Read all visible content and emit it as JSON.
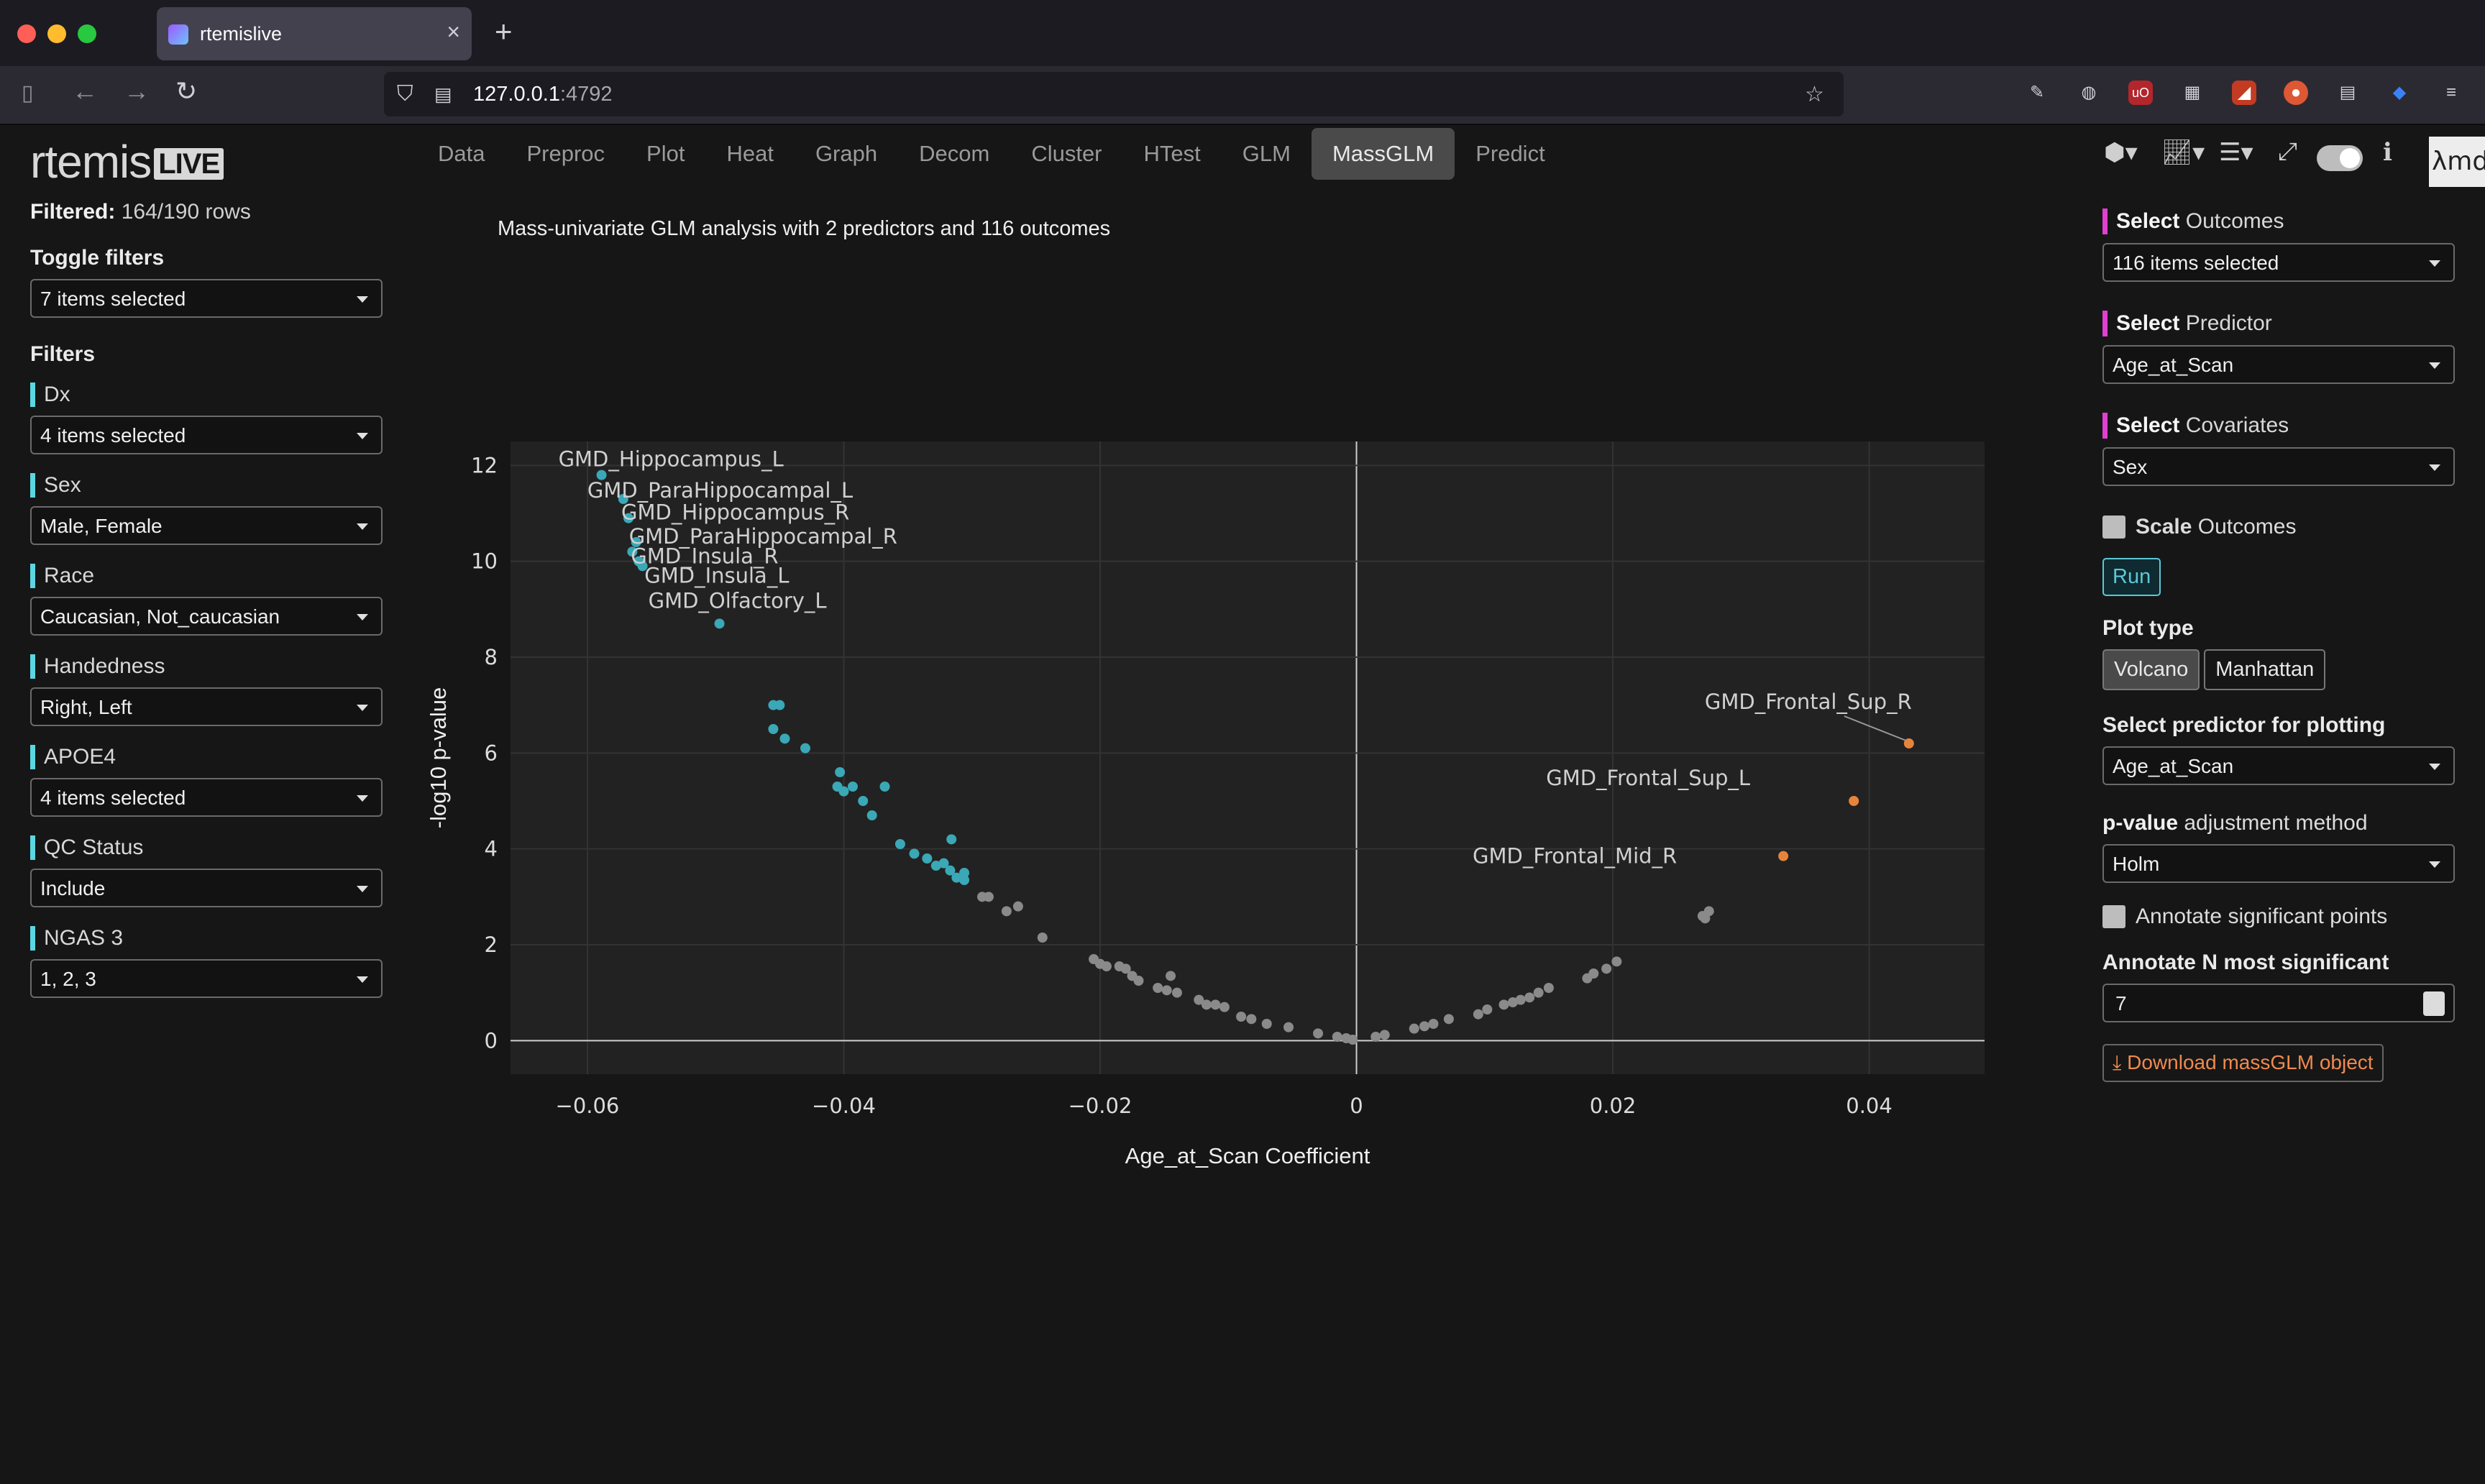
{
  "browser": {
    "tab_title": "rtemislive",
    "url_host": "127.0.0.1",
    "url_port": ":4792"
  },
  "app": {
    "logo": "rtemis",
    "logo_badge": "LIVE",
    "nav_tabs": [
      "Data",
      "Preproc",
      "Plot",
      "Heat",
      "Graph",
      "Decom",
      "Cluster",
      "HTest",
      "GLM",
      "MassGLM",
      "Predict"
    ],
    "active_tab": "MassGLM",
    "corner_label": "λmd"
  },
  "sidebar": {
    "filtered_label": "Filtered:",
    "filtered_value": "164/190 rows",
    "toggle_filters_label": "Toggle filters",
    "toggle_filters_value": "7 items selected",
    "filters_heading": "Filters",
    "filters": [
      {
        "label": "Dx",
        "value": "4 items selected"
      },
      {
        "label": "Sex",
        "value": "Male, Female"
      },
      {
        "label": "Race",
        "value": "Caucasian, Not_caucasian"
      },
      {
        "label": "Handedness",
        "value": "Right, Left"
      },
      {
        "label": "APOE4",
        "value": "4 items selected"
      },
      {
        "label": "QC Status",
        "value": "Include"
      },
      {
        "label": "NGAS 3",
        "value": "1, 2, 3"
      }
    ]
  },
  "main": {
    "description": "Mass-univariate GLM analysis with 2 predictors and 116 outcomes"
  },
  "right_panel": {
    "select_word": "Select",
    "outcomes_label": "Outcomes",
    "outcomes_value": "116 items selected",
    "predictor_label": "Predictor",
    "predictor_value": "Age_at_Scan",
    "covariates_label": "Covariates",
    "covariates_value": "Sex",
    "scale_bold": "Scale",
    "scale_rest": "Outcomes",
    "run_label": "Run",
    "plot_type_label": "Plot type",
    "plot_types": [
      "Volcano",
      "Manhattan"
    ],
    "plot_type_selected": "Volcano",
    "plot_predictor_label": "Select predictor for plotting",
    "plot_predictor_value": "Age_at_Scan",
    "pvalue_bold": "p-value",
    "pvalue_rest": "adjustment method",
    "pvalue_method": "Holm",
    "annotate_sig_label": "Annotate significant points",
    "annotate_n_label": "Annotate N most significant",
    "annotate_n_value": "7",
    "download_label": "Download massGLM object"
  },
  "colors": {
    "negative_significant": "#3aa8b6",
    "positive_significant": "#e8843a",
    "not_significant": "#8a8a8a",
    "plot_bg": "#222222",
    "accent_filters": "#5cd6e0",
    "accent_select": "#e040d0"
  },
  "chart_data": {
    "type": "scatter",
    "xlabel": "Age_at_Scan Coefficient",
    "ylabel": "-log10 p-value",
    "xlim": [
      -0.066,
      0.049
    ],
    "ylim": [
      -0.7,
      12.5
    ],
    "x_ticks": [
      -0.06,
      -0.04,
      -0.02,
      0,
      0.02,
      0.04
    ],
    "x_tick_labels": [
      "−0.06",
      "−0.04",
      "−0.02",
      "0",
      "0.02",
      "0.04"
    ],
    "y_ticks": [
      0,
      2,
      4,
      6,
      8,
      10,
      12
    ],
    "y_tick_labels": [
      "0",
      "2",
      "4",
      "6",
      "8",
      "10",
      "12"
    ],
    "grid": true,
    "series": [
      {
        "group": "negative",
        "points": [
          [
            -0.0589,
            11.8
          ],
          [
            -0.0572,
            11.3
          ],
          [
            -0.0568,
            10.9
          ],
          [
            -0.0562,
            10.4
          ],
          [
            -0.0565,
            10.2
          ],
          [
            -0.056,
            10.0
          ],
          [
            -0.0557,
            9.9
          ],
          [
            -0.0497,
            8.7
          ],
          [
            -0.0455,
            7.0
          ],
          [
            -0.045,
            7.0
          ],
          [
            -0.0455,
            6.5
          ],
          [
            -0.0446,
            6.3
          ],
          [
            -0.043,
            6.1
          ],
          [
            -0.0403,
            5.6
          ],
          [
            -0.0405,
            5.3
          ],
          [
            -0.04,
            5.2
          ],
          [
            -0.0393,
            5.3
          ],
          [
            -0.0368,
            5.3
          ],
          [
            -0.0385,
            5.0
          ],
          [
            -0.0378,
            4.7
          ],
          [
            -0.0356,
            4.1
          ],
          [
            -0.0345,
            3.9
          ],
          [
            -0.0335,
            3.8
          ],
          [
            -0.0328,
            3.65
          ],
          [
            -0.0322,
            3.7
          ],
          [
            -0.0317,
            3.55
          ],
          [
            -0.0312,
            3.4
          ],
          [
            -0.0306,
            3.35
          ],
          [
            -0.0316,
            4.2
          ],
          [
            -0.0306,
            3.5
          ]
        ]
      },
      {
        "group": "nonsignificant",
        "points": [
          [
            -0.0292,
            3.0
          ],
          [
            -0.0287,
            3.0
          ],
          [
            -0.0273,
            2.7
          ],
          [
            -0.0264,
            2.8
          ],
          [
            -0.0245,
            2.15
          ],
          [
            -0.0205,
            1.7
          ],
          [
            -0.02,
            1.6
          ],
          [
            -0.0195,
            1.55
          ],
          [
            -0.0185,
            1.55
          ],
          [
            -0.018,
            1.5
          ],
          [
            -0.0175,
            1.35
          ],
          [
            -0.017,
            1.25
          ],
          [
            -0.0155,
            1.1
          ],
          [
            -0.0148,
            1.05
          ],
          [
            -0.0145,
            1.35
          ],
          [
            -0.014,
            1.0
          ],
          [
            -0.0123,
            0.85
          ],
          [
            -0.0117,
            0.75
          ],
          [
            -0.011,
            0.75
          ],
          [
            -0.0103,
            0.7
          ],
          [
            -0.009,
            0.5
          ],
          [
            -0.0082,
            0.45
          ],
          [
            -0.007,
            0.35
          ],
          [
            -0.0053,
            0.28
          ],
          [
            -0.003,
            0.15
          ],
          [
            -0.0015,
            0.08
          ],
          [
            -0.0008,
            0.05
          ],
          [
            -0.0003,
            0.02
          ],
          [
            0.0015,
            0.08
          ],
          [
            0.0022,
            0.12
          ],
          [
            0.0045,
            0.25
          ],
          [
            0.0053,
            0.3
          ],
          [
            0.006,
            0.35
          ],
          [
            0.0072,
            0.45
          ],
          [
            0.0095,
            0.55
          ],
          [
            0.0102,
            0.65
          ],
          [
            0.0115,
            0.75
          ],
          [
            0.0122,
            0.8
          ],
          [
            0.0128,
            0.85
          ],
          [
            0.0135,
            0.9
          ],
          [
            0.0142,
            1.0
          ],
          [
            0.015,
            1.1
          ],
          [
            0.018,
            1.3
          ],
          [
            0.0185,
            1.4
          ],
          [
            0.0195,
            1.5
          ],
          [
            0.0203,
            1.65
          ],
          [
            0.027,
            2.6
          ],
          [
            0.0275,
            2.7
          ],
          [
            0.0272,
            2.55
          ]
        ]
      },
      {
        "group": "positive",
        "points": [
          [
            0.0431,
            6.2
          ],
          [
            0.0388,
            5.0
          ],
          [
            0.0333,
            3.85
          ]
        ]
      }
    ],
    "annotations": [
      {
        "text": "GMD_Hippocampus_L",
        "x": -0.0589,
        "y": 11.8
      },
      {
        "text": "GMD_ParaHippocampal_L",
        "x": -0.0572,
        "y": 11.3
      },
      {
        "text": "GMD_Hippocampus_R",
        "x": -0.0568,
        "y": 10.9
      },
      {
        "text": "GMD_ParaHippocampal_R",
        "x": -0.0562,
        "y": 10.4
      },
      {
        "text": "GMD_Insula_R",
        "x": -0.0565,
        "y": 10.2
      },
      {
        "text": "GMD_Insula_L",
        "x": -0.056,
        "y": 10.0
      },
      {
        "text": "GMD_Olfactory_L",
        "x": -0.0557,
        "y": 9.9
      },
      {
        "text": "GMD_Frontal_Sup_R",
        "x": 0.0431,
        "y": 6.2
      },
      {
        "text": "GMD_Frontal_Sup_L",
        "x": 0.0388,
        "y": 5.0
      },
      {
        "text": "GMD_Frontal_Mid_R",
        "x": 0.0333,
        "y": 3.85
      }
    ]
  }
}
